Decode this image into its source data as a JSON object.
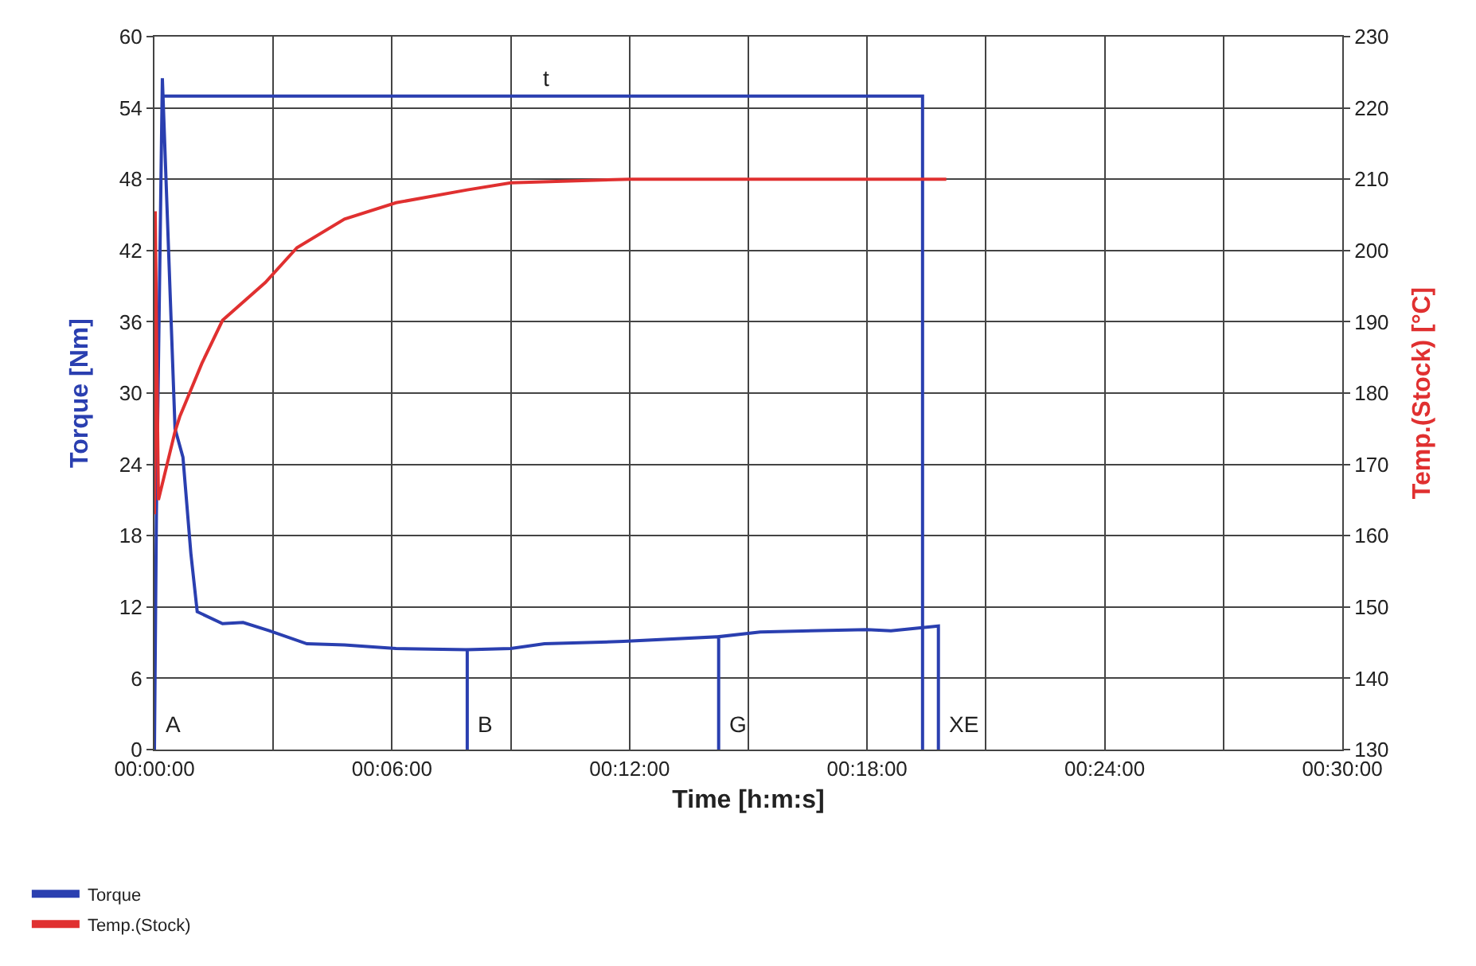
{
  "chart_data": {
    "type": "line",
    "xlabel": "Time [h:m:s]",
    "ylabel": "Torque [Nm]",
    "y2label": "Temp.(Stock) [°C]",
    "xlim": [
      0,
      30
    ],
    "xticks": [
      {
        "value": 0,
        "label": "00:00:00"
      },
      {
        "value": 3,
        "label": null
      },
      {
        "value": 6,
        "label": "00:06:00"
      },
      {
        "value": 9,
        "label": null
      },
      {
        "value": 12,
        "label": "00:12:00"
      },
      {
        "value": 15,
        "label": null
      },
      {
        "value": 18,
        "label": "00:18:00"
      },
      {
        "value": 21,
        "label": null
      },
      {
        "value": 24,
        "label": "00:24:00"
      },
      {
        "value": 27,
        "label": null
      },
      {
        "value": 30,
        "label": "00:30:00"
      }
    ],
    "ylim": [
      0,
      60
    ],
    "yticks": [
      0,
      6,
      12,
      18,
      24,
      30,
      36,
      42,
      48,
      54,
      60
    ],
    "y2lim": [
      130,
      230
    ],
    "y2ticks": [
      130,
      140,
      150,
      160,
      170,
      180,
      190,
      200,
      210,
      220,
      230
    ],
    "grid": true,
    "legend": "bottom",
    "marker": "none",
    "line_style": "solid",
    "series": [
      {
        "name": "Torque",
        "color": "#2a3fb0",
        "x": [
          0,
          0.05,
          0.2,
          0.4,
          0.52,
          0.72,
          0.92,
          1.08,
          1.72,
          2.24,
          2.9,
          3.85,
          4.8,
          6.1,
          7.9,
          7.9,
          7.9,
          9.0,
          9.85,
          11.85,
          14.25,
          14.25,
          14.25,
          15.3,
          18.0,
          18.6,
          19.8,
          19.8
        ],
        "values": [
          0,
          20,
          56.5,
          38,
          27,
          24.6,
          16.5,
          11.6,
          10.6,
          10.7,
          10,
          8.9,
          8.8,
          8.5,
          8.4,
          0,
          8.4,
          8.5,
          8.9,
          9.1,
          9.5,
          0,
          9.5,
          9.9,
          10.1,
          10,
          10.4,
          0
        ]
      },
      {
        "color": "#2a3fb0",
        "x": [
          0.2,
          19.4,
          19.4
        ],
        "values": [
          55,
          55,
          0
        ]
      },
      {
        "name": "Temp.(Stock)",
        "color": "#e03030",
        "axis": "y2",
        "x": [
          0,
          0.02,
          0.1,
          0.52,
          0.64,
          1.2,
          1.72,
          2.8,
          3.6,
          4.8,
          6.1,
          7.9,
          9.0,
          12,
          15,
          20
        ],
        "values": [
          163,
          205.5,
          165,
          174.6,
          176.7,
          184.2,
          190.2,
          195.5,
          200.4,
          204.4,
          206.7,
          208.5,
          209.5,
          210,
          210,
          210
        ]
      }
    ],
    "annotations": [
      {
        "text": "A",
        "x": 0,
        "y": 0
      },
      {
        "text": "B",
        "x": 7.9,
        "y": 0
      },
      {
        "text": "G",
        "x": 14.25,
        "y": 0
      },
      {
        "text": "XE",
        "x": 19.8,
        "y": 0
      },
      {
        "text": "t",
        "x": 9.9,
        "y": 55
      }
    ]
  }
}
